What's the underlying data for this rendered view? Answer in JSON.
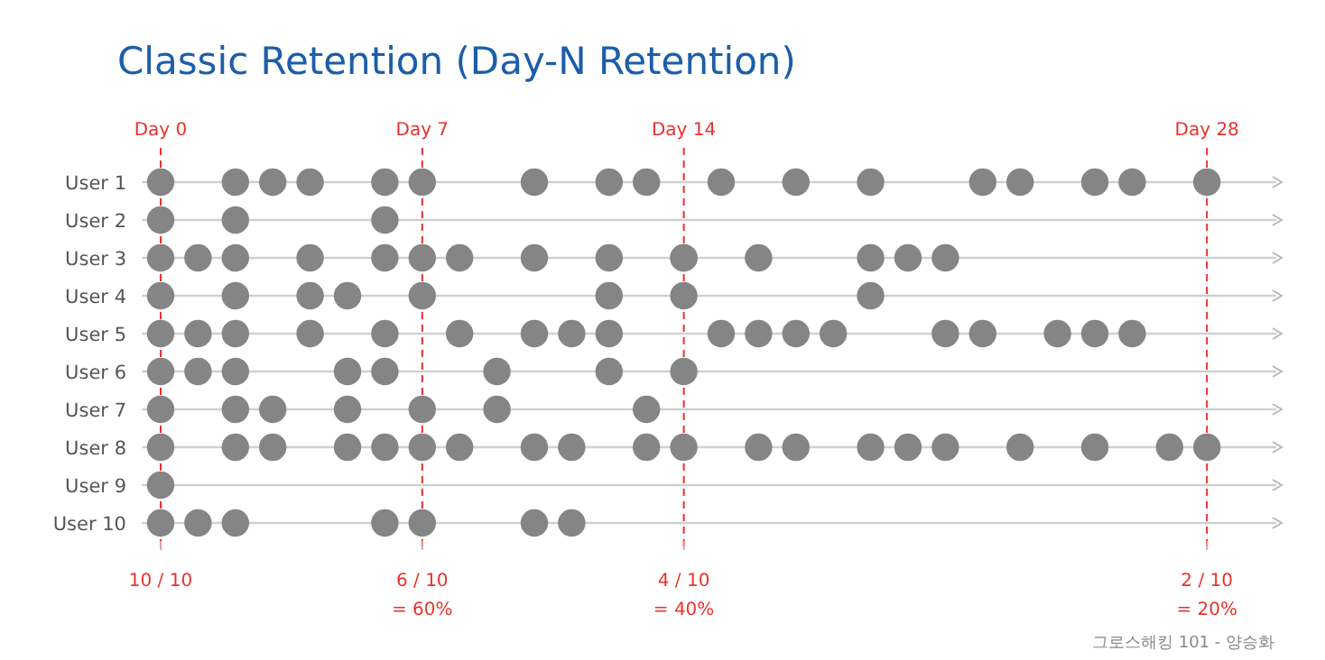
{
  "chart_data": {
    "type": "scatter",
    "title": "Classic Retention (Day-N Retention)",
    "orientation": "horizontal",
    "categories": [
      "User 1",
      "User 2",
      "User 3",
      "User 4",
      "User 5",
      "User 6",
      "User 7",
      "User 8",
      "User 9",
      "User 10"
    ],
    "xlim": [
      -0.5,
      30
    ],
    "tick_labels": "y",
    "grid": "y",
    "marker": "circle",
    "series": [
      {
        "color": "#858585",
        "x": [
          "User 1",
          "User 1",
          "User 1",
          "User 1",
          "User 1",
          "User 1",
          "User 1",
          "User 1",
          "User 1",
          "User 1",
          "User 1",
          "User 1",
          "User 1",
          "User 1",
          "User 1",
          "User 1",
          "User 1",
          "User 2",
          "User 2",
          "User 2",
          "User 3",
          "User 3",
          "User 3",
          "User 3",
          "User 3",
          "User 3",
          "User 3",
          "User 3",
          "User 3",
          "User 3",
          "User 3",
          "User 3",
          "User 3",
          "User 3",
          "User 3",
          "User 4",
          "User 4",
          "User 4",
          "User 4",
          "User 4",
          "User 4",
          "User 4",
          "User 4",
          "User 5",
          "User 5",
          "User 5",
          "User 5",
          "User 5",
          "User 5",
          "User 5",
          "User 5",
          "User 5",
          "User 5",
          "User 5",
          "User 5",
          "User 5",
          "User 5",
          "User 5",
          "User 5",
          "User 5",
          "User 5",
          "User 6",
          "User 6",
          "User 6",
          "User 6",
          "User 6",
          "User 6",
          "User 6",
          "User 6",
          "User 7",
          "User 7",
          "User 7",
          "User 7",
          "User 7",
          "User 7",
          "User 7",
          "User 8",
          "User 8",
          "User 8",
          "User 8",
          "User 8",
          "User 8",
          "User 8",
          "User 8",
          "User 8",
          "User 8",
          "User 8",
          "User 8",
          "User 8",
          "User 8",
          "User 8",
          "User 8",
          "User 8",
          "User 8",
          "User 8",
          "User 8",
          "User 9",
          "User 10",
          "User 10",
          "User 10",
          "User 10",
          "User 10",
          "User 10",
          "User 10"
        ],
        "values": [
          0,
          2,
          3,
          4,
          6,
          7,
          10,
          12,
          13,
          15,
          17,
          19,
          22,
          23,
          25,
          26,
          28,
          0,
          2,
          6,
          0,
          1,
          2,
          4,
          6,
          7,
          8,
          10,
          12,
          14,
          16,
          19,
          20,
          21,
          14,
          0,
          2,
          4,
          5,
          7,
          12,
          14,
          19,
          0,
          1,
          2,
          4,
          6,
          8,
          10,
          11,
          12,
          15,
          16,
          17,
          18,
          21,
          22,
          24,
          25,
          26,
          0,
          1,
          2,
          5,
          6,
          9,
          12,
          14,
          0,
          2,
          3,
          5,
          7,
          9,
          13,
          0,
          2,
          3,
          5,
          6,
          7,
          8,
          10,
          11,
          13,
          14,
          16,
          17,
          19,
          20,
          21,
          23,
          25,
          27,
          28,
          0,
          0,
          1,
          2,
          6,
          7,
          10,
          11
        ]
      }
    ],
    "ref_lines": [
      {
        "axis": "x",
        "value": 0,
        "label": "Day 0",
        "color": "#e8322b",
        "line_style": "dashed"
      },
      {
        "axis": "x",
        "value": 7,
        "label": "Day 7",
        "color": "#e8322b",
        "line_style": "dashed"
      },
      {
        "axis": "x",
        "value": 14,
        "label": "Day 14",
        "color": "#e8322b",
        "line_style": "dashed"
      },
      {
        "axis": "x",
        "value": 28,
        "label": "Day 28",
        "color": "#e8322b",
        "line_style": "dashed"
      }
    ],
    "annotations": [
      {
        "text": "10 / 10",
        "x": 0
      },
      {
        "text": "6 / 10\n= 60%",
        "x": 7
      },
      {
        "text": "4 / 10\n= 40%",
        "x": 14
      },
      {
        "text": "2 / 10\n= 20%",
        "x": 28
      },
      "그로스해킹 101 - 양승화"
    ]
  }
}
